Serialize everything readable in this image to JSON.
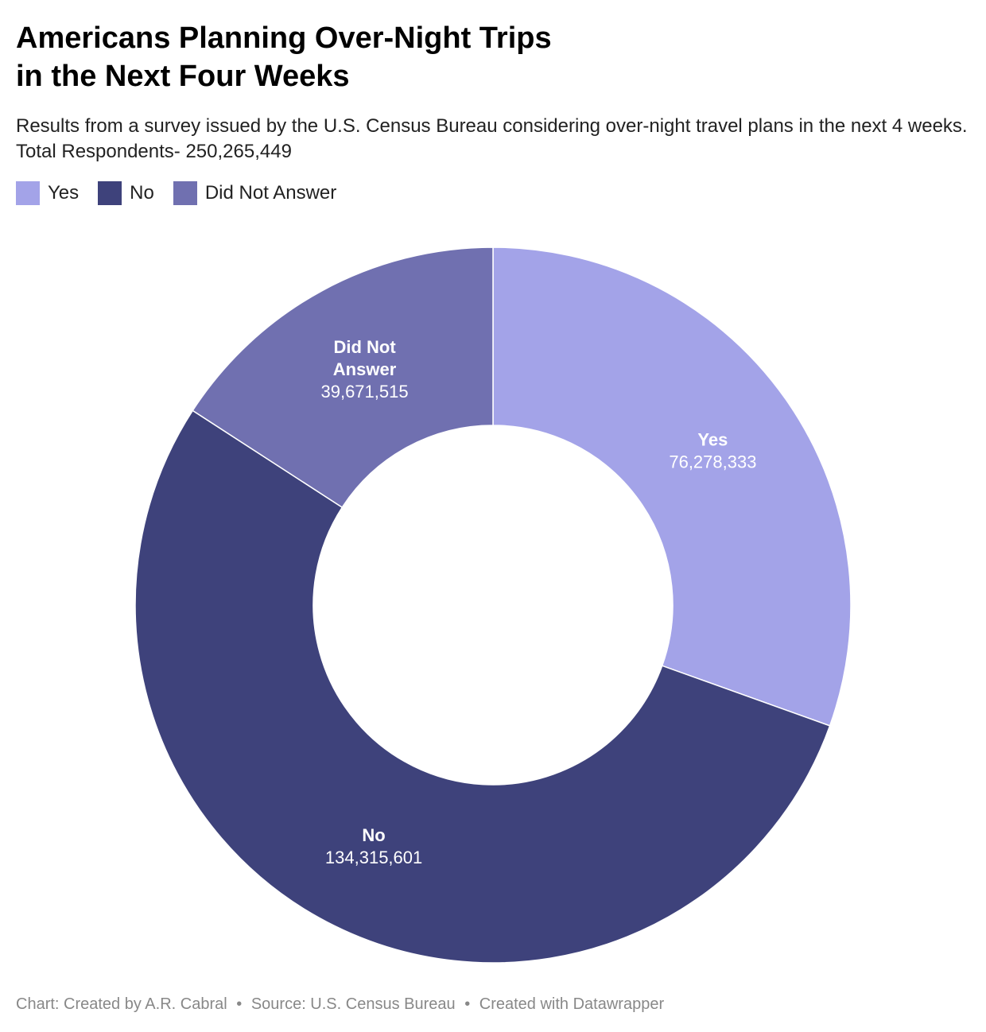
{
  "title_line1": "Americans Planning Over-Night Trips",
  "title_line2": "in the Next Four Weeks",
  "subtitle": "Results from a survey issued by the U.S. Census Bureau considering over-night travel plans in the next 4 weeks. Total Respondents- 250,265,449",
  "legend": [
    {
      "label": "Yes",
      "color": "#a3a3e8"
    },
    {
      "label": "No",
      "color": "#3e427b"
    },
    {
      "label": "Did Not Answer",
      "color": "#7070b0"
    }
  ],
  "footer": {
    "credit": "Chart: Created by A.R. Cabral",
    "source": "Source: U.S. Census Bureau",
    "tool": "Created with Datawrapper",
    "separator": "•"
  },
  "chart_data": {
    "type": "pie",
    "donut": true,
    "slices": [
      {
        "label": "Yes",
        "value": 76278333,
        "display": "76,278,333",
        "color": "#a3a3e8",
        "label_lines": [
          "Yes"
        ]
      },
      {
        "label": "No",
        "value": 134315601,
        "display": "134,315,601",
        "color": "#3e427b",
        "label_lines": [
          "No"
        ]
      },
      {
        "label": "Did Not Answer",
        "value": 39671515,
        "display": "39,671,515",
        "color": "#7070b0",
        "label_lines": [
          "Did Not",
          "Answer"
        ]
      }
    ],
    "legend_position": "top-left"
  }
}
